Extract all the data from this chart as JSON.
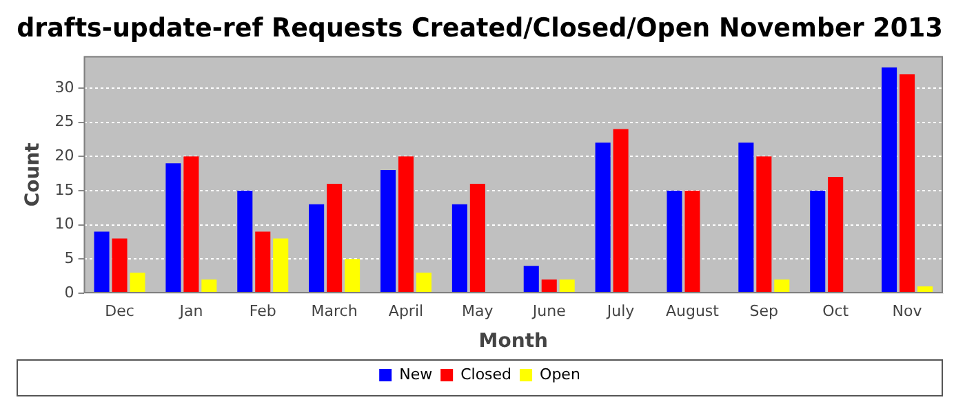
{
  "chart_data": {
    "type": "bar",
    "title": "drafts-update-ref Requests Created/Closed/Open November 2013",
    "xlabel": "Month",
    "ylabel": "Count",
    "categories": [
      "Dec",
      "Jan",
      "Feb",
      "March",
      "April",
      "May",
      "June",
      "July",
      "August",
      "Sep",
      "Oct",
      "Nov"
    ],
    "series": [
      {
        "name": "New",
        "color": "#0000ff",
        "values": [
          9,
          19,
          15,
          13,
          18,
          13,
          4,
          22,
          15,
          22,
          15,
          33
        ]
      },
      {
        "name": "Closed",
        "color": "#ff0000",
        "values": [
          8,
          20,
          9,
          16,
          20,
          16,
          2,
          24,
          15,
          20,
          17,
          32
        ]
      },
      {
        "name": "Open",
        "color": "#ffff00",
        "values": [
          3,
          2,
          8,
          5,
          3,
          0,
          2,
          0,
          0,
          2,
          0,
          1
        ]
      }
    ],
    "ylim": [
      0,
      34.65
    ],
    "yticks": [
      0,
      5,
      10,
      15,
      20,
      25,
      30
    ],
    "grid": "y",
    "legend": "bottom"
  }
}
